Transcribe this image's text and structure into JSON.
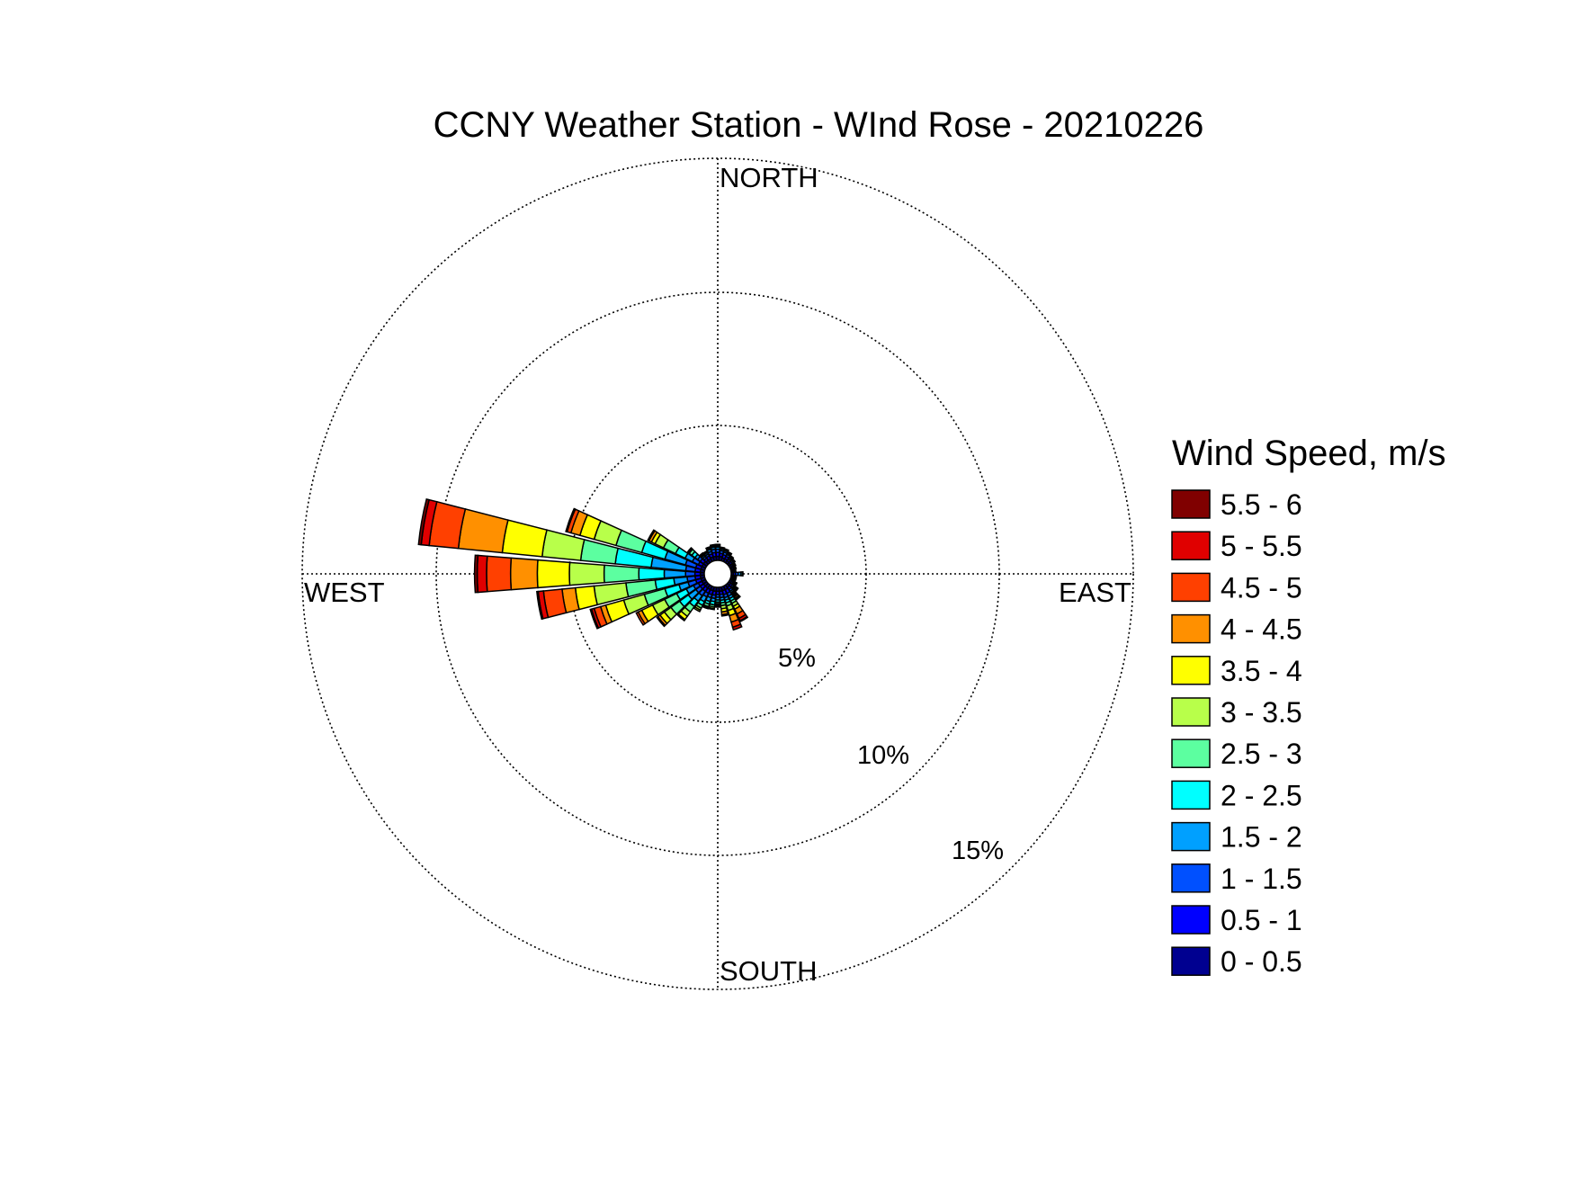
{
  "chart_data": {
    "type": "wind-rose",
    "title": "CCNY Weather Station - WInd Rose - 20210226",
    "directions": {
      "north": "NORTH",
      "south": "SOUTH",
      "east": "EAST",
      "west": "WEST"
    },
    "radial_ticks": [
      "5%",
      "10%",
      "15%"
    ],
    "radial_values": [
      5,
      10,
      15
    ],
    "grid": true,
    "legend": {
      "title": "Wind Speed, m/s",
      "position": "right",
      "entries": [
        {
          "label": "5.5 - 6",
          "color": "#800000"
        },
        {
          "label": "5 - 5.5",
          "color": "#e00000"
        },
        {
          "label": "4.5 - 5",
          "color": "#ff4000"
        },
        {
          "label": "4 - 4.5",
          "color": "#ff9000"
        },
        {
          "label": "3.5 - 4",
          "color": "#ffff00"
        },
        {
          "label": "3 - 3.5",
          "color": "#b8ff4a"
        },
        {
          "label": "2.5 - 3",
          "color": "#5cffa0"
        },
        {
          "label": "2 - 2.5",
          "color": "#00ffff"
        },
        {
          "label": "1.5 - 2",
          "color": "#00a0ff"
        },
        {
          "label": "1 - 1.5",
          "color": "#0050ff"
        },
        {
          "label": "0.5 - 1",
          "color": "#0000ff"
        },
        {
          "label": "0 - 0.5",
          "color": "#000090"
        }
      ]
    },
    "sector_width_deg": 10,
    "speed_bins": [
      "0 - 0.5",
      "0.5 - 1",
      "1 - 1.5",
      "1.5 - 2",
      "2 - 2.5",
      "2.5 - 3",
      "3 - 3.5",
      "3.5 - 4",
      "4 - 4.5",
      "4.5 - 5",
      "5 - 5.5",
      "5.5 - 6"
    ],
    "sectors": [
      {
        "dir": 0,
        "values": [
          0.15,
          0.15,
          0.12,
          0.08,
          0.05,
          0.03,
          0.02,
          0,
          0,
          0,
          0,
          0
        ]
      },
      {
        "dir": 10,
        "values": [
          0.15,
          0.12,
          0.1,
          0.06,
          0.04,
          0.02,
          0.01,
          0,
          0,
          0,
          0,
          0
        ]
      },
      {
        "dir": 20,
        "values": [
          0.12,
          0.12,
          0.1,
          0.06,
          0.04,
          0.02,
          0.01,
          0,
          0,
          0,
          0,
          0
        ]
      },
      {
        "dir": 30,
        "values": [
          0.12,
          0.1,
          0.08,
          0.05,
          0.03,
          0.02,
          0.01,
          0,
          0,
          0,
          0,
          0
        ]
      },
      {
        "dir": 40,
        "values": [
          0.1,
          0.08,
          0.06,
          0.04,
          0.03,
          0.02,
          0,
          0,
          0,
          0,
          0,
          0
        ]
      },
      {
        "dir": 50,
        "values": [
          0.08,
          0.08,
          0.06,
          0.04,
          0.02,
          0.01,
          0,
          0,
          0,
          0,
          0,
          0
        ]
      },
      {
        "dir": 60,
        "values": [
          0.08,
          0.06,
          0.05,
          0.03,
          0.02,
          0,
          0,
          0,
          0,
          0,
          0,
          0
        ]
      },
      {
        "dir": 70,
        "values": [
          0.06,
          0.06,
          0.04,
          0.03,
          0.02,
          0,
          0,
          0,
          0,
          0,
          0,
          0
        ]
      },
      {
        "dir": 80,
        "values": [
          0.06,
          0.05,
          0.04,
          0.02,
          0.01,
          0,
          0,
          0,
          0,
          0,
          0,
          0
        ]
      },
      {
        "dir": 90,
        "values": [
          0.08,
          0.08,
          0.1,
          0.1,
          0.06,
          0.02,
          0,
          0,
          0,
          0,
          0,
          0
        ]
      },
      {
        "dir": 100,
        "values": [
          0.06,
          0.05,
          0.04,
          0.03,
          0.02,
          0,
          0,
          0,
          0,
          0,
          0,
          0
        ]
      },
      {
        "dir": 110,
        "values": [
          0.06,
          0.05,
          0.04,
          0.03,
          0.02,
          0,
          0,
          0,
          0,
          0,
          0,
          0
        ]
      },
      {
        "dir": 120,
        "values": [
          0.08,
          0.06,
          0.05,
          0.04,
          0.03,
          0.02,
          0.01,
          0,
          0,
          0,
          0,
          0
        ]
      },
      {
        "dir": 130,
        "values": [
          0.1,
          0.08,
          0.06,
          0.05,
          0.04,
          0.03,
          0.02,
          0.02,
          0.02,
          0.01,
          0,
          0
        ]
      },
      {
        "dir": 140,
        "values": [
          0.12,
          0.1,
          0.08,
          0.06,
          0.05,
          0.05,
          0.05,
          0.05,
          0.06,
          0.04,
          0.02,
          0.01
        ]
      },
      {
        "dir": 150,
        "values": [
          0.15,
          0.15,
          0.12,
          0.1,
          0.1,
          0.1,
          0.12,
          0.12,
          0.2,
          0.18,
          0.1,
          0.03
        ]
      },
      {
        "dir": 160,
        "values": [
          0.15,
          0.15,
          0.12,
          0.1,
          0.1,
          0.12,
          0.18,
          0.2,
          0.25,
          0.2,
          0.1,
          0
        ]
      },
      {
        "dir": 170,
        "values": [
          0.15,
          0.12,
          0.12,
          0.1,
          0.1,
          0.1,
          0.12,
          0.12,
          0.1,
          0.05,
          0,
          0
        ]
      },
      {
        "dir": 180,
        "values": [
          0.15,
          0.12,
          0.1,
          0.1,
          0.08,
          0.06,
          0.05,
          0.05,
          0.03,
          0,
          0,
          0
        ]
      },
      {
        "dir": 190,
        "values": [
          0.15,
          0.15,
          0.12,
          0.12,
          0.12,
          0.08,
          0.06,
          0.04,
          0,
          0,
          0,
          0
        ]
      },
      {
        "dir": 200,
        "values": [
          0.15,
          0.15,
          0.12,
          0.15,
          0.1,
          0.1,
          0.05,
          0.03,
          0,
          0,
          0,
          0
        ]
      },
      {
        "dir": 210,
        "values": [
          0.15,
          0.15,
          0.15,
          0.2,
          0.15,
          0.12,
          0.08,
          0.06,
          0,
          0,
          0,
          0
        ]
      },
      {
        "dir": 220,
        "values": [
          0.15,
          0.15,
          0.2,
          0.25,
          0.25,
          0.25,
          0.2,
          0.15,
          0.05,
          0,
          0,
          0
        ]
      },
      {
        "dir": 230,
        "values": [
          0.15,
          0.15,
          0.2,
          0.35,
          0.4,
          0.4,
          0.3,
          0.2,
          0.1,
          0.05,
          0,
          0
        ]
      },
      {
        "dir": 240,
        "values": [
          0.15,
          0.15,
          0.2,
          0.3,
          0.4,
          0.5,
          0.5,
          0.45,
          0.15,
          0.08,
          0,
          0
        ]
      },
      {
        "dir": 250,
        "values": [
          0.15,
          0.2,
          0.3,
          0.35,
          0.55,
          0.8,
          0.8,
          0.7,
          0.2,
          0.25,
          0.1,
          0.05
        ]
      },
      {
        "dir": 260,
        "values": [
          0.15,
          0.2,
          0.3,
          0.5,
          0.7,
          1.1,
          1.2,
          0.7,
          0.5,
          0.7,
          0.2,
          0.05
        ]
      },
      {
        "dir": 270,
        "values": [
          0.15,
          0.2,
          0.35,
          0.8,
          0.95,
          1.3,
          1.3,
          1.2,
          1.0,
          0.9,
          0.35,
          0.1
        ]
      },
      {
        "dir": 280,
        "values": [
          0.15,
          0.2,
          0.35,
          1.3,
          1.35,
          1.3,
          1.45,
          1.5,
          1.65,
          1.1,
          0.3,
          0.1
        ]
      },
      {
        "dir": 290,
        "values": [
          0.15,
          0.2,
          0.4,
          0.8,
          0.9,
          1.0,
          0.85,
          0.55,
          0.35,
          0.15,
          0.05,
          0
        ]
      },
      {
        "dir": 300,
        "values": [
          0.15,
          0.15,
          0.25,
          0.3,
          0.4,
          0.5,
          0.35,
          0.15,
          0.1,
          0.05,
          0,
          0
        ]
      },
      {
        "dir": 310,
        "values": [
          0.15,
          0.15,
          0.12,
          0.12,
          0.15,
          0.12,
          0.05,
          0.03,
          0,
          0,
          0,
          0
        ]
      },
      {
        "dir": 320,
        "values": [
          0.12,
          0.1,
          0.08,
          0.06,
          0.05,
          0.03,
          0.02,
          0,
          0,
          0,
          0,
          0
        ]
      },
      {
        "dir": 330,
        "values": [
          0.12,
          0.12,
          0.08,
          0.06,
          0.04,
          0.02,
          0,
          0,
          0,
          0,
          0,
          0
        ]
      },
      {
        "dir": 340,
        "values": [
          0.15,
          0.12,
          0.1,
          0.08,
          0.05,
          0.03,
          0.02,
          0,
          0,
          0,
          0,
          0
        ]
      },
      {
        "dir": 350,
        "values": [
          0.15,
          0.15,
          0.12,
          0.08,
          0.05,
          0.03,
          0.02,
          0,
          0,
          0,
          0,
          0
        ]
      }
    ]
  }
}
